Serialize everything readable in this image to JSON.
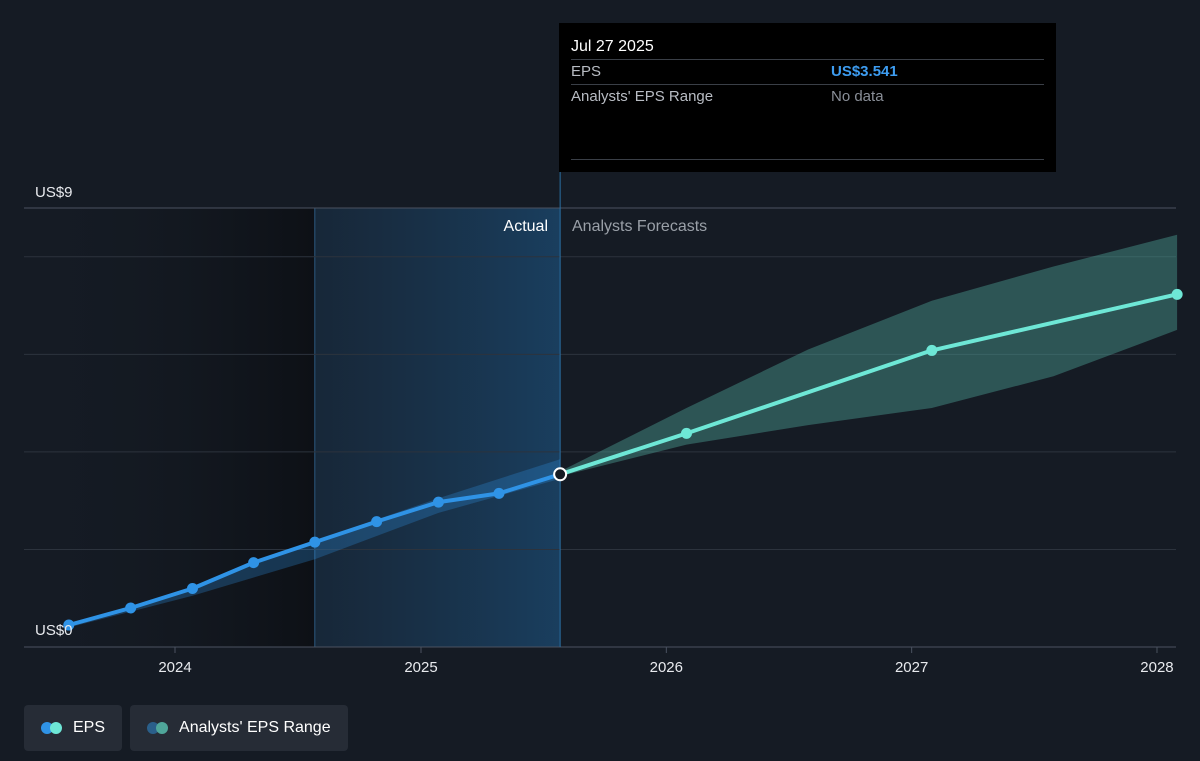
{
  "chart_data": {
    "type": "line",
    "y_axis": {
      "min": 0,
      "max": 9,
      "top_label": "US$9",
      "bottom_label": "US$0",
      "gridlines": true
    },
    "x_axis": {
      "ticks": [
        "2024",
        "2025",
        "2026",
        "2027",
        "2028"
      ]
    },
    "region_labels": {
      "actual": "Actual",
      "forecast": "Analysts Forecasts"
    },
    "series": [
      {
        "name": "EPS",
        "kind": "actual",
        "color": "#2f93e6",
        "points": [
          {
            "date": "2023-07-27",
            "value": 0.45
          },
          {
            "date": "2023-10-27",
            "value": 0.8
          },
          {
            "date": "2024-01-27",
            "value": 1.2
          },
          {
            "date": "2024-04-27",
            "value": 1.73
          },
          {
            "date": "2024-07-27",
            "value": 2.15
          },
          {
            "date": "2024-10-27",
            "value": 2.57
          },
          {
            "date": "2025-01-27",
            "value": 2.97
          },
          {
            "date": "2025-04-27",
            "value": 3.15
          },
          {
            "date": "2025-07-27",
            "value": 3.541
          }
        ]
      },
      {
        "name": "EPS",
        "kind": "forecast",
        "color": "#6ee7d6",
        "points": [
          {
            "date": "2025-07-27",
            "value": 3.541
          },
          {
            "date": "2026-01-31",
            "value": 4.38
          },
          {
            "date": "2027-01-31",
            "value": 6.08
          },
          {
            "date": "2028-01-31",
            "value": 7.23
          }
        ]
      }
    ],
    "range_band_actual": {
      "color": "#2f93e6",
      "upper": [
        {
          "date": "2023-07-27",
          "value": 0.45
        },
        {
          "date": "2024-01-27",
          "value": 1.22
        },
        {
          "date": "2024-07-27",
          "value": 2.18
        },
        {
          "date": "2025-01-27",
          "value": 3.05
        },
        {
          "date": "2025-07-27",
          "value": 3.85
        }
      ],
      "lower": [
        {
          "date": "2025-07-27",
          "value": 3.45
        },
        {
          "date": "2025-01-27",
          "value": 2.75
        },
        {
          "date": "2024-07-27",
          "value": 1.8
        },
        {
          "date": "2024-01-27",
          "value": 1.05
        },
        {
          "date": "2023-07-27",
          "value": 0.4
        }
      ]
    },
    "range_band_forecast": {
      "name": "Analysts' EPS Range",
      "color": "#4fa69a",
      "upper": [
        {
          "date": "2025-07-27",
          "value": 3.6
        },
        {
          "date": "2026-01-31",
          "value": 4.9
        },
        {
          "date": "2026-07-31",
          "value": 6.1
        },
        {
          "date": "2027-01-31",
          "value": 7.1
        },
        {
          "date": "2027-07-31",
          "value": 7.8
        },
        {
          "date": "2028-01-31",
          "value": 8.45
        }
      ],
      "lower": [
        {
          "date": "2028-01-31",
          "value": 6.5
        },
        {
          "date": "2027-07-31",
          "value": 5.55
        },
        {
          "date": "2027-01-31",
          "value": 4.9
        },
        {
          "date": "2026-07-31",
          "value": 4.55
        },
        {
          "date": "2026-01-31",
          "value": 4.15
        },
        {
          "date": "2025-07-27",
          "value": 3.5
        }
      ]
    },
    "highlight_date": "2025-07-27"
  },
  "tooltip": {
    "date": "Jul 27 2025",
    "rows": [
      {
        "label": "EPS",
        "value": "US$3.541"
      },
      {
        "label": "Analysts' EPS Range",
        "value": "No data"
      }
    ]
  },
  "legend": [
    {
      "label": "EPS",
      "colors": [
        "#2f93e6",
        "#6ee7d6"
      ]
    },
    {
      "label": "Analysts' EPS Range",
      "colors": [
        "#2a5f8a",
        "#4fa69a"
      ]
    }
  ]
}
